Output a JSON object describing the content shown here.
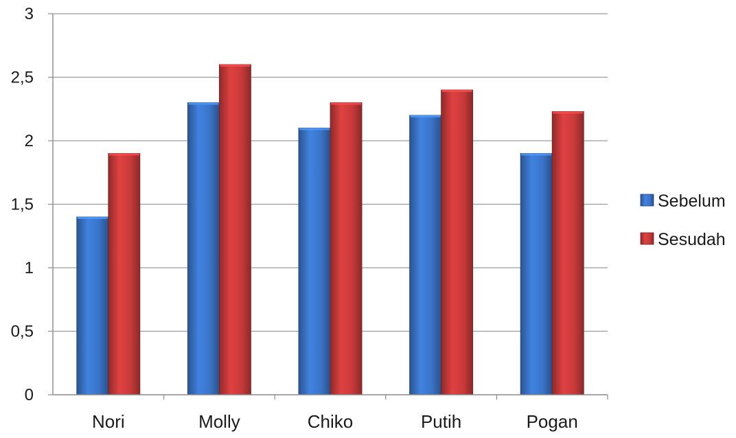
{
  "chart_data": {
    "type": "bar",
    "categories": [
      "Nori",
      "Molly",
      "Chiko",
      "Putih",
      "Pogan"
    ],
    "series": [
      {
        "name": "Sebelum",
        "values": [
          1.4,
          2.3,
          2.1,
          2.2,
          1.9
        ],
        "color": "#3a74c8"
      },
      {
        "name": "Sesudah",
        "values": [
          1.9,
          2.6,
          2.3,
          2.4,
          2.23
        ],
        "color": "#c83a3a"
      }
    ],
    "yticks": [
      "0",
      "0,5",
      "1",
      "1,5",
      "2",
      "2,5",
      "3"
    ],
    "ylim": [
      0,
      3
    ],
    "ytick_step": 0.5,
    "grid": true,
    "legend_position": "right",
    "title": "",
    "xlabel": "",
    "ylabel": ""
  }
}
